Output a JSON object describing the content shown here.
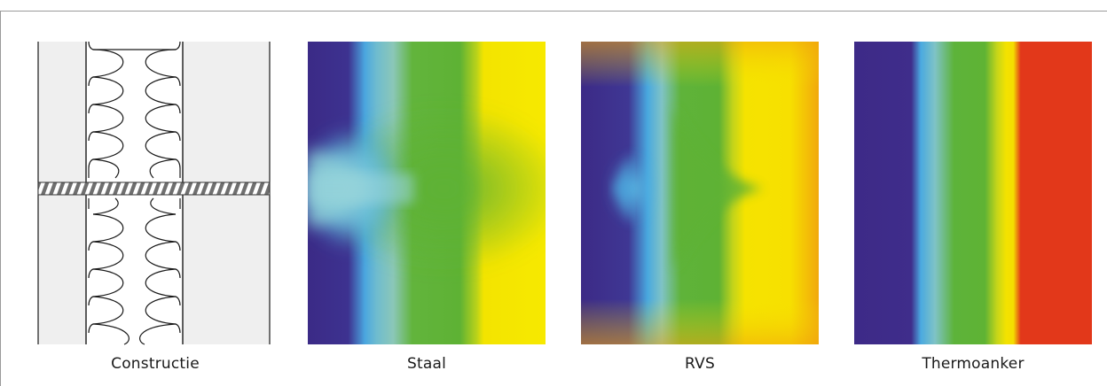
{
  "panels": [
    {
      "id": "constructie",
      "label": "Constructie"
    },
    {
      "id": "staal",
      "label": "Staal"
    },
    {
      "id": "rvs",
      "label": "RVS"
    },
    {
      "id": "thermoanker",
      "label": "Thermoanker"
    }
  ],
  "colors": {
    "wall": "#efefef",
    "insulation": "#ffffff",
    "line": "#1a1a1a",
    "anchor_hatch": "#777777",
    "border": "#999999",
    "thermal_scale": [
      "#3f2a87",
      "#4aa9e0",
      "#8ec7c8",
      "#5fb336",
      "#f6e300",
      "#f4a20a",
      "#e2381a"
    ]
  }
}
